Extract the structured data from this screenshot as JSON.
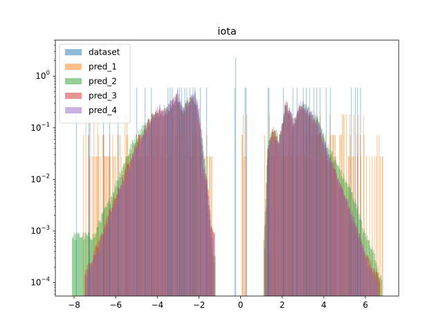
{
  "chart_data": {
    "type": "histogram",
    "title": "iota",
    "xlabel": "",
    "ylabel": "",
    "xlim": [
      -8.9,
      7.6
    ],
    "ylim": [
      5.5e-05,
      5.0
    ],
    "yscale": "log",
    "grid": false,
    "legend_position": "top-left",
    "x_ticks": [
      {
        "value": -8,
        "label": "−8"
      },
      {
        "value": -6,
        "label": "−6"
      },
      {
        "value": -4,
        "label": "−4"
      },
      {
        "value": -2,
        "label": "−2"
      },
      {
        "value": 0,
        "label": "0"
      },
      {
        "value": 2,
        "label": "2"
      },
      {
        "value": 4,
        "label": "4"
      },
      {
        "value": 6,
        "label": "6"
      }
    ],
    "y_ticks": [
      {
        "value": 0.0001,
        "base": "10",
        "exp": "−4"
      },
      {
        "value": 0.001,
        "base": "10",
        "exp": "−3"
      },
      {
        "value": 0.01,
        "base": "10",
        "exp": "−2"
      },
      {
        "value": 0.1,
        "base": "10",
        "exp": "−1"
      },
      {
        "value": 1,
        "base": "10",
        "exp": "0"
      }
    ],
    "bin_width": 0.03,
    "series": [
      {
        "name": "dataset",
        "color": "#1f77b4",
        "opacity": 0.5,
        "style": "spikes",
        "spikes": [
          [
            -7.9,
            0.18
          ],
          [
            -7.3,
            0.18
          ],
          [
            -7.25,
            0.6
          ],
          [
            -6.6,
            0.6
          ],
          [
            -6.3,
            0.6
          ],
          [
            -5.9,
            0.18
          ],
          [
            -5.0,
            0.6
          ],
          [
            -4.6,
            0.6
          ],
          [
            -4.3,
            0.6
          ],
          [
            -3.5,
            0.6
          ],
          [
            -3.4,
            0.6
          ],
          [
            -3.3,
            0.6
          ],
          [
            -3.05,
            0.6
          ],
          [
            -2.95,
            0.6
          ],
          [
            -2.85,
            0.6
          ],
          [
            -2.7,
            0.6
          ],
          [
            -2.6,
            0.6
          ],
          [
            -2.45,
            0.6
          ],
          [
            -2.3,
            0.6
          ],
          [
            -2.2,
            0.6
          ],
          [
            -1.95,
            0.6
          ],
          [
            -1.65,
            0.6
          ],
          [
            -0.25,
            2.3
          ],
          [
            -0.3,
            0.6
          ],
          [
            0.2,
            0.6
          ],
          [
            0.25,
            0.6
          ],
          [
            1.3,
            0.6
          ],
          [
            1.35,
            0.6
          ],
          [
            2.05,
            0.6
          ],
          [
            2.5,
            0.6
          ],
          [
            2.7,
            0.6
          ],
          [
            3.0,
            0.6
          ],
          [
            3.15,
            0.6
          ],
          [
            3.3,
            0.6
          ],
          [
            3.5,
            0.6
          ],
          [
            3.65,
            0.6
          ],
          [
            3.8,
            0.6
          ],
          [
            4.1,
            0.6
          ],
          [
            4.3,
            0.6
          ],
          [
            5.3,
            0.6
          ],
          [
            5.5,
            0.6
          ],
          [
            5.6,
            0.6
          ],
          [
            5.75,
            0.6
          ]
        ]
      },
      {
        "name": "pred_1",
        "color": "#ff7f0e",
        "opacity": 0.5,
        "style": "sparse",
        "segments": [
          {
            "x0": -7.6,
            "x1": -1.25,
            "floor": 0.028,
            "density": 0.55
          },
          {
            "x0": -0.35,
            "x1": -0.18,
            "floor": 0.028,
            "density": 0.6
          },
          {
            "x0": 0.05,
            "x1": 0.3,
            "floor": 0.028,
            "density": 0.6
          },
          {
            "x0": 1.15,
            "x1": 6.85,
            "floor": 0.028,
            "density": 0.55
          }
        ]
      },
      {
        "name": "pred_2",
        "color": "#2ca02c",
        "opacity": 0.5,
        "style": "dense",
        "ranges": [
          [
            -8.1,
            -1.2
          ],
          [
            1.1,
            6.8
          ]
        ],
        "shape": [
          [
            -8.1,
            0.0008
          ],
          [
            -7.0,
            0.0008
          ],
          [
            -6.8,
            0.0015
          ],
          [
            -6.4,
            0.003
          ],
          [
            -6.0,
            0.008
          ],
          [
            -5.6,
            0.02
          ],
          [
            -5.2,
            0.05
          ],
          [
            -4.7,
            0.1
          ],
          [
            -4.3,
            0.15
          ],
          [
            -3.95,
            0.2
          ],
          [
            -3.7,
            0.2
          ],
          [
            -3.4,
            0.25
          ],
          [
            -3.1,
            0.38
          ],
          [
            -2.85,
            0.22
          ],
          [
            -2.6,
            0.3
          ],
          [
            -2.35,
            0.38
          ],
          [
            -2.15,
            0.35
          ],
          [
            -2.0,
            0.15
          ],
          [
            -1.85,
            0.05
          ],
          [
            -1.7,
            0.02
          ],
          [
            -1.55,
            0.002
          ],
          [
            -1.3,
            0.0003
          ],
          [
            1.1,
            0.0004
          ],
          [
            1.3,
            0.05
          ],
          [
            1.6,
            0.1
          ],
          [
            1.85,
            0.06
          ],
          [
            2.0,
            0.1
          ],
          [
            2.15,
            0.25
          ],
          [
            2.35,
            0.2
          ],
          [
            2.55,
            0.1
          ],
          [
            2.75,
            0.2
          ],
          [
            2.95,
            0.27
          ],
          [
            3.3,
            0.2
          ],
          [
            3.7,
            0.15
          ],
          [
            4.1,
            0.05
          ],
          [
            4.5,
            0.025
          ],
          [
            4.9,
            0.012
          ],
          [
            5.3,
            0.006
          ],
          [
            5.6,
            0.003
          ],
          [
            5.9,
            0.001
          ],
          [
            6.3,
            0.0005
          ],
          [
            6.8,
            0.0001
          ]
        ]
      },
      {
        "name": "pred_3",
        "color": "#d62728",
        "opacity": 0.5,
        "style": "dense",
        "ranges": [
          [
            -7.5,
            -1.25
          ],
          [
            1.15,
            6.7
          ]
        ],
        "shape": [
          [
            -7.5,
            0.00015
          ],
          [
            -7.1,
            0.0003
          ],
          [
            -6.6,
            0.001
          ],
          [
            -6.2,
            0.003
          ],
          [
            -5.8,
            0.007
          ],
          [
            -5.4,
            0.02
          ],
          [
            -5.0,
            0.05
          ],
          [
            -4.6,
            0.1
          ],
          [
            -4.2,
            0.18
          ],
          [
            -3.9,
            0.23
          ],
          [
            -3.6,
            0.2
          ],
          [
            -3.35,
            0.28
          ],
          [
            -3.05,
            0.4
          ],
          [
            -2.8,
            0.2
          ],
          [
            -2.55,
            0.28
          ],
          [
            -2.3,
            0.38
          ],
          [
            -2.1,
            0.3
          ],
          [
            -1.95,
            0.1
          ],
          [
            -1.8,
            0.015
          ],
          [
            -1.6,
            0.01
          ],
          [
            -1.4,
            0.001
          ],
          [
            1.15,
            0.0003
          ],
          [
            1.3,
            0.04
          ],
          [
            1.55,
            0.1
          ],
          [
            1.8,
            0.05
          ],
          [
            2.0,
            0.1
          ],
          [
            2.15,
            0.27
          ],
          [
            2.35,
            0.2
          ],
          [
            2.55,
            0.12
          ],
          [
            2.75,
            0.22
          ],
          [
            2.95,
            0.27
          ],
          [
            3.3,
            0.18
          ],
          [
            3.7,
            0.12
          ],
          [
            4.1,
            0.035
          ],
          [
            4.5,
            0.015
          ],
          [
            4.9,
            0.006
          ],
          [
            5.3,
            0.002
          ],
          [
            5.7,
            0.0008
          ],
          [
            6.1,
            0.0003
          ],
          [
            6.7,
            0.0001
          ]
        ]
      },
      {
        "name": "pred_4",
        "color": "#9467bd",
        "opacity": 0.5,
        "style": "dense",
        "ranges": [
          [
            -7.4,
            -1.3
          ],
          [
            1.2,
            6.6
          ]
        ],
        "shape": [
          [
            -7.4,
            0.00012
          ],
          [
            -7.0,
            0.0003
          ],
          [
            -6.5,
            0.001
          ],
          [
            -6.1,
            0.003
          ],
          [
            -5.7,
            0.008
          ],
          [
            -5.3,
            0.02
          ],
          [
            -4.9,
            0.05
          ],
          [
            -4.5,
            0.1
          ],
          [
            -4.1,
            0.18
          ],
          [
            -3.85,
            0.25
          ],
          [
            -3.6,
            0.22
          ],
          [
            -3.3,
            0.3
          ],
          [
            -3.0,
            0.45
          ],
          [
            -2.75,
            0.22
          ],
          [
            -2.5,
            0.3
          ],
          [
            -2.25,
            0.45
          ],
          [
            -2.05,
            0.35
          ],
          [
            -1.9,
            0.12
          ],
          [
            -1.75,
            0.02
          ],
          [
            -1.55,
            0.005
          ],
          [
            -1.35,
            0.0008
          ],
          [
            1.2,
            0.0003
          ],
          [
            1.35,
            0.03
          ],
          [
            1.6,
            0.08
          ],
          [
            1.85,
            0.05
          ],
          [
            2.05,
            0.12
          ],
          [
            2.2,
            0.28
          ],
          [
            2.4,
            0.22
          ],
          [
            2.6,
            0.12
          ],
          [
            2.8,
            0.25
          ],
          [
            3.0,
            0.3
          ],
          [
            3.35,
            0.2
          ],
          [
            3.75,
            0.12
          ],
          [
            4.15,
            0.04
          ],
          [
            4.55,
            0.015
          ],
          [
            4.95,
            0.006
          ],
          [
            5.35,
            0.002
          ],
          [
            5.75,
            0.0007
          ],
          [
            6.15,
            0.0002
          ],
          [
            6.6,
            0.0001
          ]
        ]
      }
    ]
  }
}
